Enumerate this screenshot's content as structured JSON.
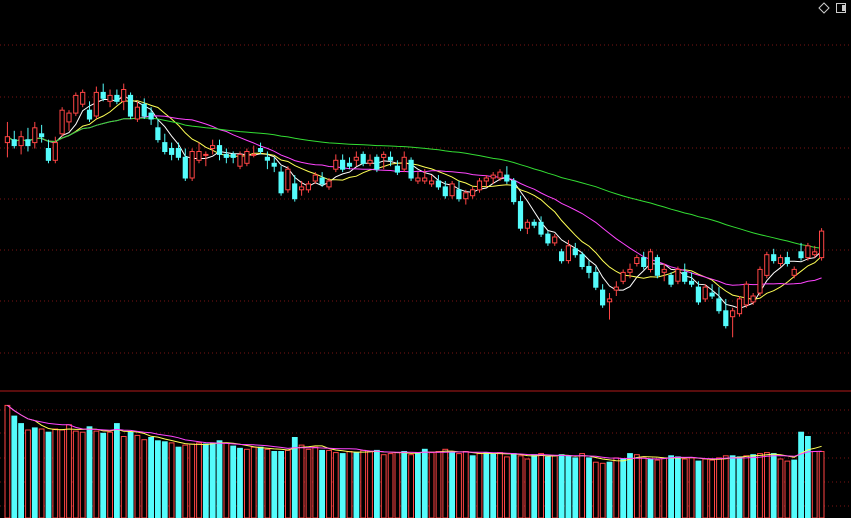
{
  "colors": {
    "background": "#000000",
    "grid": "#7a1515",
    "divider": "#b21a1a",
    "up": "#ff4545",
    "down": "#54fcfc",
    "ma_short": "#ffffff",
    "ma_mid": "#ffff55",
    "ma_long": "#ff44ff",
    "ma_longest": "#33dd33"
  },
  "icons": [
    "diamond-icon",
    "restore-square-icon"
  ],
  "chart_data": {
    "type": "candlestick",
    "grid": true,
    "price_ylim": [
      0,
      100
    ],
    "volume_ylim": [
      0,
      110
    ],
    "candles": [
      {
        "o": 72,
        "h": 79,
        "l": 67,
        "c": 74
      },
      {
        "o": 73,
        "h": 76,
        "l": 70,
        "c": 71
      },
      {
        "o": 71,
        "h": 76,
        "l": 68,
        "c": 74
      },
      {
        "o": 73,
        "h": 77,
        "l": 69,
        "c": 71
      },
      {
        "o": 72,
        "h": 79,
        "l": 70,
        "c": 77
      },
      {
        "o": 75,
        "h": 78,
        "l": 72,
        "c": 74
      },
      {
        "o": 70,
        "h": 73,
        "l": 65,
        "c": 66
      },
      {
        "o": 66,
        "h": 74,
        "l": 65,
        "c": 72
      },
      {
        "o": 75,
        "h": 84,
        "l": 74,
        "c": 83
      },
      {
        "o": 79,
        "h": 83,
        "l": 76,
        "c": 82
      },
      {
        "o": 82,
        "h": 89,
        "l": 81,
        "c": 88
      },
      {
        "o": 85,
        "h": 90,
        "l": 84,
        "c": 89
      },
      {
        "o": 83,
        "h": 86,
        "l": 79,
        "c": 80
      },
      {
        "o": 81,
        "h": 91,
        "l": 80,
        "c": 89
      },
      {
        "o": 89,
        "h": 92,
        "l": 86,
        "c": 87
      },
      {
        "o": 86,
        "h": 90,
        "l": 84,
        "c": 88
      },
      {
        "o": 88,
        "h": 90,
        "l": 85,
        "c": 86
      },
      {
        "o": 86,
        "h": 92,
        "l": 83,
        "c": 90
      },
      {
        "o": 88,
        "h": 89,
        "l": 80,
        "c": 81
      },
      {
        "o": 80,
        "h": 86,
        "l": 79,
        "c": 84
      },
      {
        "o": 85,
        "h": 87,
        "l": 80,
        "c": 81
      },
      {
        "o": 82,
        "h": 84,
        "l": 78,
        "c": 80
      },
      {
        "o": 77,
        "h": 80,
        "l": 72,
        "c": 73
      },
      {
        "o": 72,
        "h": 75,
        "l": 68,
        "c": 69
      },
      {
        "o": 70,
        "h": 72,
        "l": 66,
        "c": 68
      },
      {
        "o": 70,
        "h": 72,
        "l": 66,
        "c": 67
      },
      {
        "o": 67,
        "h": 70,
        "l": 59,
        "c": 60
      },
      {
        "o": 60,
        "h": 70,
        "l": 59,
        "c": 69
      },
      {
        "o": 66,
        "h": 72,
        "l": 65,
        "c": 69
      },
      {
        "o": 68,
        "h": 69,
        "l": 64,
        "c": 68
      },
      {
        "o": 70,
        "h": 73,
        "l": 68,
        "c": 71
      },
      {
        "o": 71,
        "h": 73,
        "l": 66,
        "c": 68
      },
      {
        "o": 68,
        "h": 70,
        "l": 65,
        "c": 67
      },
      {
        "o": 68,
        "h": 69,
        "l": 65,
        "c": 67
      },
      {
        "o": 64,
        "h": 69,
        "l": 63,
        "c": 68
      },
      {
        "o": 65,
        "h": 70,
        "l": 64,
        "c": 69
      },
      {
        "o": 68,
        "h": 71,
        "l": 67,
        "c": 68
      },
      {
        "o": 70,
        "h": 72,
        "l": 68,
        "c": 69
      },
      {
        "o": 67,
        "h": 69,
        "l": 63,
        "c": 66
      },
      {
        "o": 65,
        "h": 67,
        "l": 62,
        "c": 64
      },
      {
        "o": 62,
        "h": 64,
        "l": 54,
        "c": 55
      },
      {
        "o": 56,
        "h": 64,
        "l": 55,
        "c": 63
      },
      {
        "o": 58,
        "h": 61,
        "l": 52,
        "c": 53
      },
      {
        "o": 56,
        "h": 59,
        "l": 54,
        "c": 57
      },
      {
        "o": 56,
        "h": 59,
        "l": 55,
        "c": 58
      },
      {
        "o": 59,
        "h": 62,
        "l": 58,
        "c": 61
      },
      {
        "o": 60,
        "h": 62,
        "l": 57,
        "c": 58
      },
      {
        "o": 57,
        "h": 60,
        "l": 56,
        "c": 59
      },
      {
        "o": 63,
        "h": 68,
        "l": 62,
        "c": 66
      },
      {
        "o": 66,
        "h": 68,
        "l": 62,
        "c": 63
      },
      {
        "o": 65,
        "h": 67,
        "l": 63,
        "c": 64
      },
      {
        "o": 66,
        "h": 69,
        "l": 64,
        "c": 67
      },
      {
        "o": 68,
        "h": 69,
        "l": 64,
        "c": 65
      },
      {
        "o": 65,
        "h": 68,
        "l": 64,
        "c": 66
      },
      {
        "o": 67,
        "h": 68,
        "l": 62,
        "c": 63
      },
      {
        "o": 67,
        "h": 69,
        "l": 63,
        "c": 68
      },
      {
        "o": 67,
        "h": 69,
        "l": 64,
        "c": 66
      },
      {
        "o": 64,
        "h": 66,
        "l": 61,
        "c": 62
      },
      {
        "o": 63,
        "h": 69,
        "l": 62,
        "c": 67
      },
      {
        "o": 66,
        "h": 67,
        "l": 59,
        "c": 60
      },
      {
        "o": 59,
        "h": 62,
        "l": 58,
        "c": 60
      },
      {
        "o": 59,
        "h": 63,
        "l": 58,
        "c": 60
      },
      {
        "o": 58,
        "h": 61,
        "l": 57,
        "c": 59
      },
      {
        "o": 59,
        "h": 61,
        "l": 56,
        "c": 57
      },
      {
        "o": 57,
        "h": 59,
        "l": 53,
        "c": 54
      },
      {
        "o": 54,
        "h": 59,
        "l": 53,
        "c": 58
      },
      {
        "o": 56,
        "h": 59,
        "l": 52,
        "c": 53
      },
      {
        "o": 53,
        "h": 56,
        "l": 51,
        "c": 55
      },
      {
        "o": 54,
        "h": 57,
        "l": 53,
        "c": 56
      },
      {
        "o": 56,
        "h": 60,
        "l": 55,
        "c": 59
      },
      {
        "o": 59,
        "h": 61,
        "l": 57,
        "c": 60
      },
      {
        "o": 60,
        "h": 62,
        "l": 58,
        "c": 61
      },
      {
        "o": 60,
        "h": 63,
        "l": 59,
        "c": 62
      },
      {
        "o": 61,
        "h": 64,
        "l": 58,
        "c": 59
      },
      {
        "o": 59,
        "h": 60,
        "l": 51,
        "c": 52
      },
      {
        "o": 52,
        "h": 54,
        "l": 42,
        "c": 43
      },
      {
        "o": 43,
        "h": 46,
        "l": 41,
        "c": 45
      },
      {
        "o": 45,
        "h": 46,
        "l": 43,
        "c": 44
      },
      {
        "o": 45,
        "h": 47,
        "l": 40,
        "c": 41
      },
      {
        "o": 41,
        "h": 42,
        "l": 37,
        "c": 38
      },
      {
        "o": 38,
        "h": 41,
        "l": 37,
        "c": 40
      },
      {
        "o": 35,
        "h": 36,
        "l": 31,
        "c": 32
      },
      {
        "o": 32,
        "h": 39,
        "l": 31,
        "c": 37
      },
      {
        "o": 36,
        "h": 38,
        "l": 33,
        "c": 34
      },
      {
        "o": 34,
        "h": 35,
        "l": 29,
        "c": 30
      },
      {
        "o": 30,
        "h": 32,
        "l": 26,
        "c": 28
      },
      {
        "o": 28,
        "h": 30,
        "l": 22,
        "c": 23
      },
      {
        "o": 22,
        "h": 24,
        "l": 16,
        "c": 17
      },
      {
        "o": 18,
        "h": 21,
        "l": 12,
        "c": 19
      },
      {
        "o": 22,
        "h": 25,
        "l": 20,
        "c": 23
      },
      {
        "o": 25,
        "h": 29,
        "l": 24,
        "c": 28
      },
      {
        "o": 28,
        "h": 31,
        "l": 26,
        "c": 29
      },
      {
        "o": 31,
        "h": 34,
        "l": 30,
        "c": 33
      },
      {
        "o": 33,
        "h": 35,
        "l": 29,
        "c": 30
      },
      {
        "o": 29,
        "h": 36,
        "l": 28,
        "c": 35
      },
      {
        "o": 33,
        "h": 34,
        "l": 26,
        "c": 27
      },
      {
        "o": 28,
        "h": 31,
        "l": 25,
        "c": 29
      },
      {
        "o": 27,
        "h": 28,
        "l": 23,
        "c": 24
      },
      {
        "o": 25,
        "h": 30,
        "l": 24,
        "c": 29
      },
      {
        "o": 28,
        "h": 31,
        "l": 24,
        "c": 25
      },
      {
        "o": 25,
        "h": 28,
        "l": 23,
        "c": 24
      },
      {
        "o": 23,
        "h": 25,
        "l": 17,
        "c": 18
      },
      {
        "o": 19,
        "h": 24,
        "l": 18,
        "c": 23
      },
      {
        "o": 21,
        "h": 24,
        "l": 19,
        "c": 20
      },
      {
        "o": 19,
        "h": 23,
        "l": 14,
        "c": 15
      },
      {
        "o": 15,
        "h": 19,
        "l": 9,
        "c": 10
      },
      {
        "o": 13,
        "h": 16,
        "l": 6,
        "c": 15
      },
      {
        "o": 14,
        "h": 20,
        "l": 13,
        "c": 19
      },
      {
        "o": 17,
        "h": 25,
        "l": 16,
        "c": 24
      },
      {
        "o": 18,
        "h": 21,
        "l": 17,
        "c": 20
      },
      {
        "o": 21,
        "h": 30,
        "l": 20,
        "c": 29
      },
      {
        "o": 27,
        "h": 35,
        "l": 26,
        "c": 34
      },
      {
        "o": 34,
        "h": 36,
        "l": 31,
        "c": 32
      },
      {
        "o": 31,
        "h": 34,
        "l": 30,
        "c": 33
      },
      {
        "o": 33,
        "h": 35,
        "l": 30,
        "c": 31
      },
      {
        "o": 27,
        "h": 30,
        "l": 26,
        "c": 29
      },
      {
        "o": 35,
        "h": 38,
        "l": 32,
        "c": 33
      },
      {
        "o": 33,
        "h": 38,
        "l": 32,
        "c": 37
      },
      {
        "o": 34,
        "h": 37,
        "l": 33,
        "c": 35
      },
      {
        "o": 33,
        "h": 43,
        "l": 32,
        "c": 42
      }
    ],
    "volume": [
      105,
      95,
      88,
      82,
      84,
      83,
      80,
      83,
      82,
      87,
      81,
      80,
      85,
      81,
      79,
      80,
      88,
      76,
      80,
      77,
      73,
      75,
      72,
      71,
      70,
      66,
      68,
      69,
      70,
      69,
      70,
      72,
      70,
      67,
      65,
      64,
      66,
      66,
      64,
      62,
      62,
      63,
      75,
      68,
      64,
      66,
      63,
      63,
      61,
      60,
      62,
      61,
      63,
      62,
      63,
      59,
      60,
      61,
      62,
      59,
      61,
      64,
      61,
      62,
      64,
      61,
      60,
      62,
      58,
      60,
      61,
      60,
      61,
      57,
      60,
      58,
      55,
      59,
      60,
      57,
      58,
      59,
      58,
      56,
      60,
      56,
      52,
      51,
      52,
      56,
      55,
      60,
      59,
      56,
      55,
      54,
      56,
      58,
      57,
      55,
      56,
      53,
      55,
      54,
      56,
      58,
      58,
      57,
      58,
      59,
      60,
      61,
      60,
      55,
      53,
      54,
      80,
      76,
      62,
      62
    ],
    "volume_dir": [
      1,
      0,
      0,
      1,
      0,
      1,
      0,
      1,
      1,
      1,
      1,
      1,
      0,
      1,
      0,
      1,
      0,
      1,
      0,
      1,
      1,
      0,
      0,
      0,
      1,
      0,
      1,
      1,
      1,
      0,
      0,
      0,
      1,
      0,
      0,
      1,
      1,
      0,
      1,
      0,
      0,
      1,
      0,
      1,
      1,
      1,
      0,
      1,
      1,
      0,
      1,
      0,
      1,
      1,
      0,
      1,
      1,
      1,
      0,
      1,
      0,
      0,
      1,
      1,
      1,
      0,
      1,
      1,
      0,
      1,
      0,
      0,
      1,
      1,
      0,
      1,
      1,
      0,
      1,
      0,
      1,
      0,
      0,
      0,
      1,
      0,
      1,
      1,
      0,
      1,
      0,
      0,
      1,
      1,
      0,
      1,
      1,
      0,
      0,
      1,
      1,
      0,
      1,
      1,
      1,
      1,
      0,
      0,
      1,
      0,
      1,
      1,
      0,
      1,
      1,
      0,
      0,
      0,
      1,
      1
    ]
  }
}
